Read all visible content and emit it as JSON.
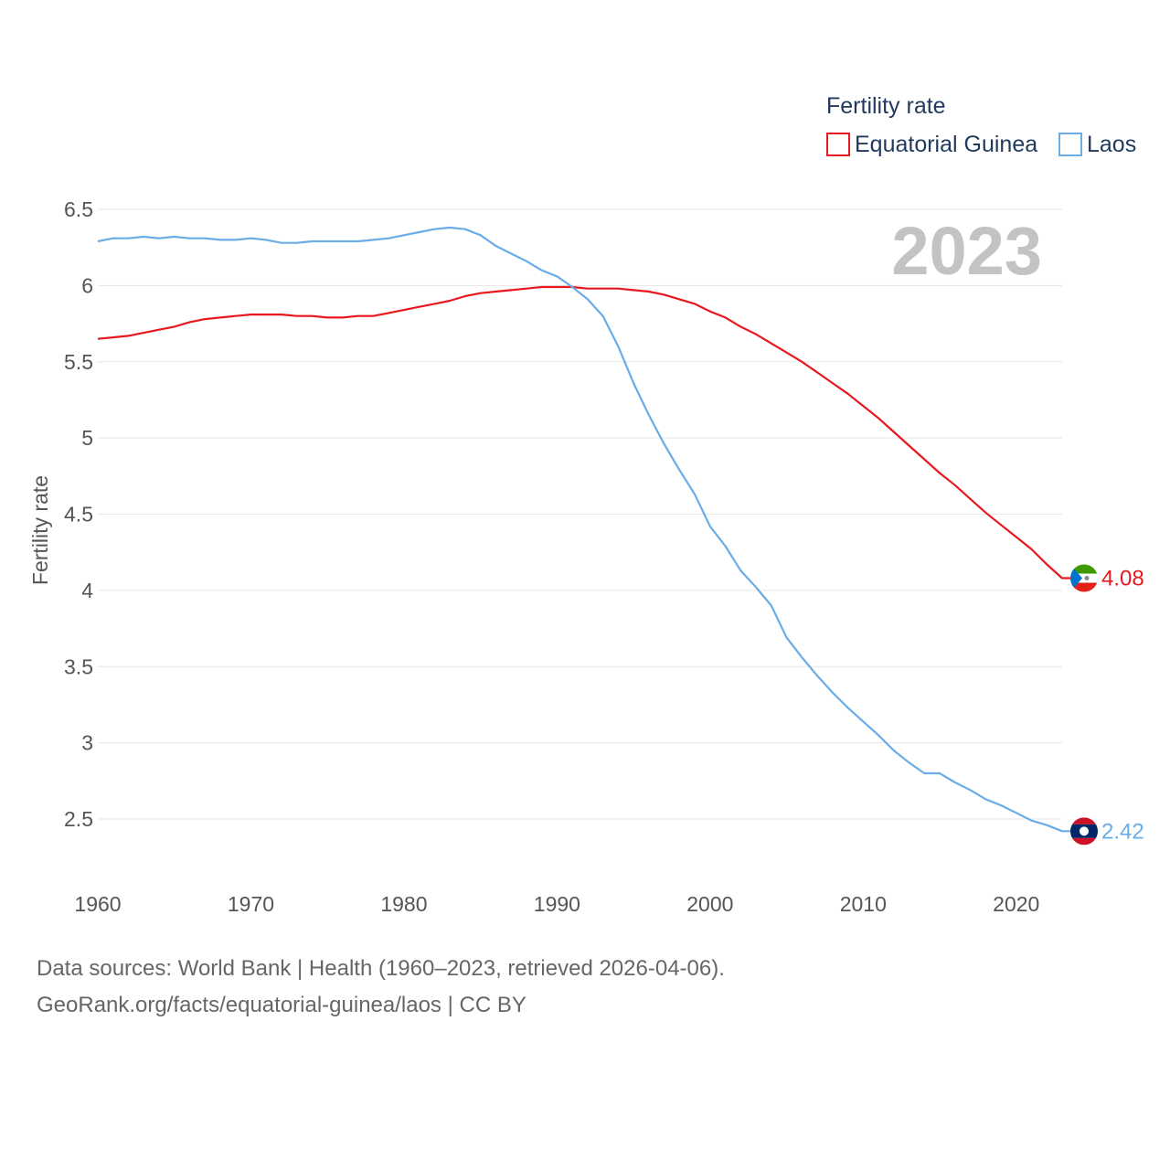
{
  "chart_data": {
    "type": "line",
    "legend_title": "Fertility rate",
    "ylabel": "Fertility rate",
    "year_label": "2023",
    "x": [
      1960,
      1961,
      1962,
      1963,
      1964,
      1965,
      1966,
      1967,
      1968,
      1969,
      1970,
      1971,
      1972,
      1973,
      1974,
      1975,
      1976,
      1977,
      1978,
      1979,
      1980,
      1981,
      1982,
      1983,
      1984,
      1985,
      1986,
      1987,
      1988,
      1989,
      1990,
      1991,
      1992,
      1993,
      1994,
      1995,
      1996,
      1997,
      1998,
      1999,
      2000,
      2001,
      2002,
      2003,
      2004,
      2005,
      2006,
      2007,
      2008,
      2009,
      2010,
      2011,
      2012,
      2013,
      2014,
      2015,
      2016,
      2017,
      2018,
      2019,
      2020,
      2021,
      2022,
      2023
    ],
    "xlim": [
      1960,
      2023
    ],
    "ylim": [
      2.0,
      6.6
    ],
    "x_ticks": [
      "1960",
      "1970",
      "1980",
      "1990",
      "2000",
      "2010",
      "2020"
    ],
    "y_ticks": [
      "2.5",
      "3",
      "3.5",
      "4",
      "4.5",
      "5",
      "5.5",
      "6",
      "6.5"
    ],
    "series": [
      {
        "name": "Equatorial Guinea",
        "color": "#e8181e",
        "end_value_label": "4.08",
        "flag_icon": "equatorial-guinea-flag-icon",
        "values": [
          5.65,
          5.66,
          5.67,
          5.69,
          5.71,
          5.73,
          5.76,
          5.78,
          5.79,
          5.8,
          5.81,
          5.81,
          5.81,
          5.8,
          5.8,
          5.79,
          5.79,
          5.8,
          5.8,
          5.82,
          5.84,
          5.86,
          5.88,
          5.9,
          5.93,
          5.95,
          5.96,
          5.97,
          5.98,
          5.99,
          5.99,
          5.99,
          5.98,
          5.98,
          5.98,
          5.97,
          5.96,
          5.94,
          5.91,
          5.88,
          5.83,
          5.79,
          5.73,
          5.68,
          5.62,
          5.56,
          5.5,
          5.43,
          5.36,
          5.29,
          5.21,
          5.13,
          5.04,
          4.95,
          4.86,
          4.77,
          4.69,
          4.6,
          4.51,
          4.43,
          4.35,
          4.27,
          4.17,
          4.08
        ]
      },
      {
        "name": "Laos",
        "color": "#6aace8",
        "end_value_label": "2.42",
        "flag_icon": "laos-flag-icon",
        "values": [
          6.29,
          6.31,
          6.31,
          6.32,
          6.31,
          6.32,
          6.31,
          6.31,
          6.3,
          6.3,
          6.31,
          6.3,
          6.28,
          6.28,
          6.29,
          6.29,
          6.29,
          6.29,
          6.3,
          6.31,
          6.33,
          6.35,
          6.37,
          6.38,
          6.37,
          6.33,
          6.26,
          6.21,
          6.16,
          6.1,
          6.06,
          5.99,
          5.91,
          5.8,
          5.6,
          5.36,
          5.15,
          4.96,
          4.79,
          4.63,
          4.42,
          4.29,
          4.13,
          4.02,
          3.9,
          3.69,
          3.56,
          3.44,
          3.33,
          3.23,
          3.14,
          3.05,
          2.95,
          2.87,
          2.8,
          2.8,
          2.74,
          2.69,
          2.63,
          2.59,
          2.54,
          2.49,
          2.46,
          2.42
        ]
      }
    ]
  },
  "sources": {
    "line1": "Data sources: World Bank | Health (1960–2023, retrieved 2026-04-06).",
    "line2": "GeoRank.org/facts/equatorial-guinea/laos | CC BY"
  }
}
